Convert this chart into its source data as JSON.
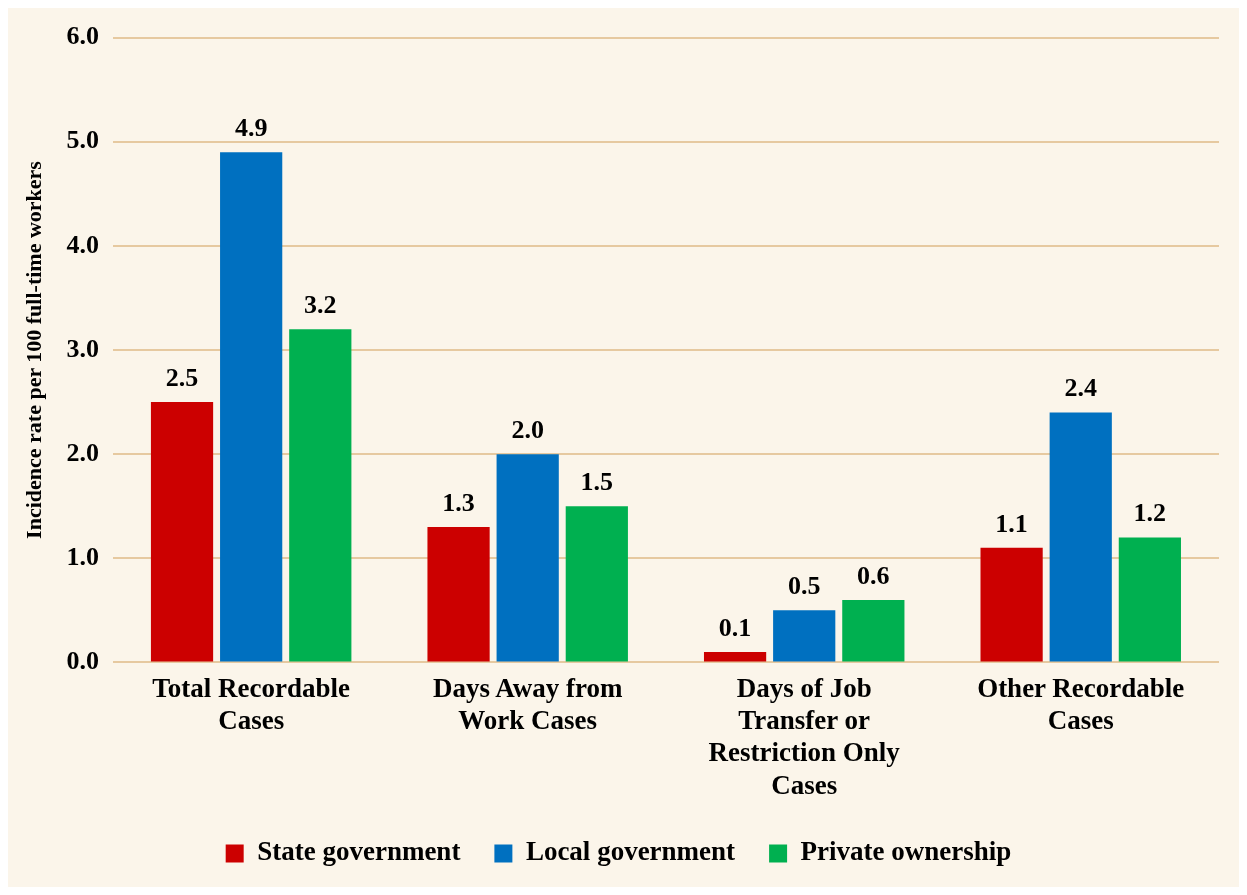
{
  "chart_data": {
    "type": "bar",
    "ylabel": "Incidence rate per 100 full-time workers",
    "categories": [
      "Total Recordable Cases",
      "Days Away from Work Cases",
      "Days of Job Transfer or Restriction Only Cases",
      "Other Recordable Cases"
    ],
    "series": [
      {
        "name": "State government",
        "color": "#cc0000",
        "values": [
          2.5,
          1.3,
          0.1,
          1.1
        ],
        "value_labels": [
          "2.5",
          "1.3",
          "0.1",
          "1.1"
        ]
      },
      {
        "name": "Local government",
        "color": "#0070c0",
        "values": [
          4.9,
          2.0,
          0.5,
          2.4
        ],
        "value_labels": [
          "4.9",
          "2.0",
          "0.5",
          "2.4"
        ]
      },
      {
        "name": "Private ownership",
        "color": "#00b050",
        "values": [
          3.2,
          1.5,
          0.6,
          1.2
        ],
        "value_labels": [
          "3.2",
          "1.5",
          "0.6",
          "1.2"
        ]
      }
    ],
    "ylim": [
      0,
      6
    ],
    "yticks": [
      {
        "value": 0,
        "label": "0.0"
      },
      {
        "value": 1,
        "label": "1.0"
      },
      {
        "value": 2,
        "label": "2.0"
      },
      {
        "value": 3,
        "label": "3.0"
      },
      {
        "value": 4,
        "label": "4.0"
      },
      {
        "value": 5,
        "label": "5.0"
      },
      {
        "value": 6,
        "label": "6.0"
      }
    ],
    "grid": "y",
    "legend": "bottom"
  }
}
